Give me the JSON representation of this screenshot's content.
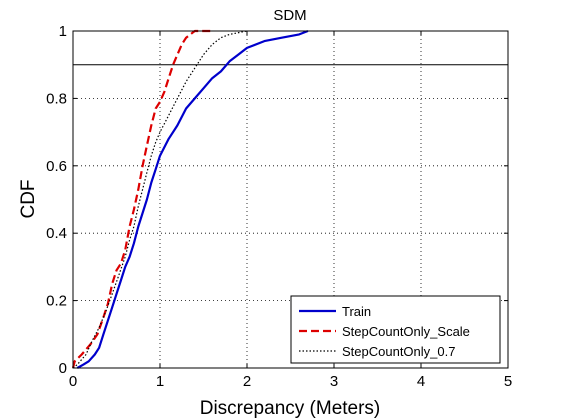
{
  "chart_data": {
    "type": "line",
    "title": "SDM",
    "xlabel": "Discrepancy (Meters)",
    "ylabel": "CDF",
    "xlim": [
      0,
      5
    ],
    "ylim": [
      0,
      1
    ],
    "xticks": [
      "0",
      "1",
      "2",
      "3",
      "4",
      "5"
    ],
    "yticks": [
      "0",
      "0.2",
      "0.4",
      "0.6",
      "0.8",
      "1"
    ],
    "grid": "dotted",
    "reference_line_y": 0.9,
    "legend": {
      "position": "bottom-right"
    },
    "series": [
      {
        "name": "Train",
        "color": "#0000cc",
        "style": "solid",
        "points": [
          [
            0.05,
            0
          ],
          [
            0.12,
            0.01
          ],
          [
            0.18,
            0.02
          ],
          [
            0.25,
            0.04
          ],
          [
            0.3,
            0.06
          ],
          [
            0.35,
            0.1
          ],
          [
            0.4,
            0.14
          ],
          [
            0.45,
            0.18
          ],
          [
            0.5,
            0.22
          ],
          [
            0.55,
            0.26
          ],
          [
            0.6,
            0.3
          ],
          [
            0.65,
            0.33
          ],
          [
            0.7,
            0.37
          ],
          [
            0.75,
            0.42
          ],
          [
            0.8,
            0.46
          ],
          [
            0.85,
            0.5
          ],
          [
            0.9,
            0.55
          ],
          [
            0.95,
            0.59
          ],
          [
            1.0,
            0.63
          ],
          [
            1.1,
            0.68
          ],
          [
            1.2,
            0.72
          ],
          [
            1.3,
            0.77
          ],
          [
            1.4,
            0.8
          ],
          [
            1.5,
            0.83
          ],
          [
            1.6,
            0.86
          ],
          [
            1.7,
            0.88
          ],
          [
            1.8,
            0.91
          ],
          [
            1.9,
            0.93
          ],
          [
            2.0,
            0.95
          ],
          [
            2.2,
            0.97
          ],
          [
            2.4,
            0.98
          ],
          [
            2.6,
            0.99
          ],
          [
            2.7,
            1.0
          ]
        ]
      },
      {
        "name": "StepCountOnly_Scale",
        "color": "#dd0000",
        "style": "dashed",
        "points": [
          [
            0.0,
            0
          ],
          [
            0.02,
            0.02
          ],
          [
            0.1,
            0.04
          ],
          [
            0.2,
            0.07
          ],
          [
            0.28,
            0.1
          ],
          [
            0.35,
            0.15
          ],
          [
            0.4,
            0.19
          ],
          [
            0.45,
            0.25
          ],
          [
            0.5,
            0.29
          ],
          [
            0.55,
            0.31
          ],
          [
            0.6,
            0.35
          ],
          [
            0.65,
            0.42
          ],
          [
            0.7,
            0.47
          ],
          [
            0.75,
            0.53
          ],
          [
            0.8,
            0.6
          ],
          [
            0.85,
            0.66
          ],
          [
            0.9,
            0.72
          ],
          [
            0.95,
            0.77
          ],
          [
            1.0,
            0.79
          ],
          [
            1.05,
            0.82
          ],
          [
            1.1,
            0.86
          ],
          [
            1.15,
            0.9
          ],
          [
            1.2,
            0.93
          ],
          [
            1.25,
            0.96
          ],
          [
            1.3,
            0.98
          ],
          [
            1.4,
            1.0
          ],
          [
            1.6,
            1.0
          ]
        ]
      },
      {
        "name": "StepCountOnly_0.7",
        "color": "#000000",
        "style": "dotted",
        "points": [
          [
            0.0,
            0
          ],
          [
            0.05,
            0.01
          ],
          [
            0.15,
            0.04
          ],
          [
            0.22,
            0.08
          ],
          [
            0.3,
            0.12
          ],
          [
            0.38,
            0.17
          ],
          [
            0.45,
            0.22
          ],
          [
            0.52,
            0.27
          ],
          [
            0.6,
            0.33
          ],
          [
            0.65,
            0.38
          ],
          [
            0.7,
            0.42
          ],
          [
            0.75,
            0.48
          ],
          [
            0.8,
            0.53
          ],
          [
            0.85,
            0.58
          ],
          [
            0.9,
            0.63
          ],
          [
            0.95,
            0.67
          ],
          [
            1.0,
            0.7
          ],
          [
            1.1,
            0.75
          ],
          [
            1.2,
            0.8
          ],
          [
            1.3,
            0.85
          ],
          [
            1.4,
            0.89
          ],
          [
            1.5,
            0.93
          ],
          [
            1.6,
            0.96
          ],
          [
            1.7,
            0.98
          ],
          [
            1.8,
            0.99
          ],
          [
            2.0,
            1.0
          ]
        ]
      }
    ]
  }
}
